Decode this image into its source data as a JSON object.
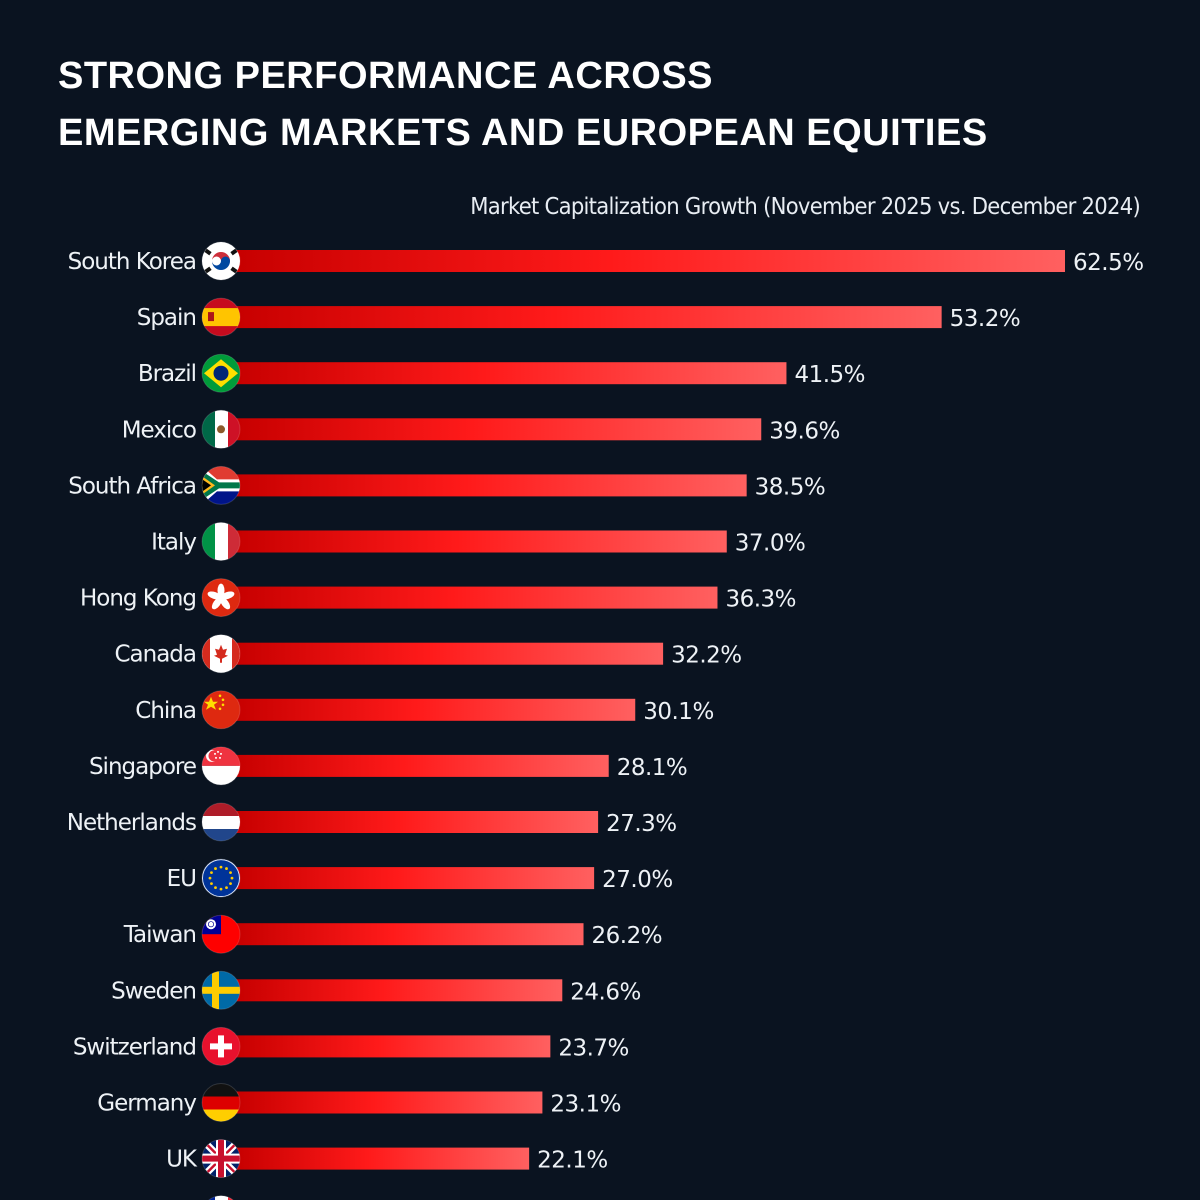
{
  "header": {
    "title_line1": "STRONG PERFORMANCE ACROSS",
    "title_line2": "EMERGING MARKETS AND EUROPEAN EQUITIES"
  },
  "chart_data": {
    "type": "bar",
    "orientation": "horizontal",
    "title": "STRONG PERFORMANCE ACROSS EMERGING MARKETS AND EUROPEAN EQUITIES",
    "subtitle": "Market Capitalization Growth (November 2025 vs. December 2024)",
    "unit": "%",
    "xlim": [
      0,
      62.5
    ],
    "grid": false,
    "bar_gradient": [
      "#c70000",
      "#ff1a1a",
      "#ff6060"
    ],
    "categories": [
      "South Korea",
      "Spain",
      "Brazil",
      "Mexico",
      "South Africa",
      "Italy",
      "Hong Kong",
      "Canada",
      "China",
      "Singapore",
      "Netherlands",
      "EU",
      "Taiwan",
      "Sweden",
      "Switzerland",
      "Germany",
      "UK"
    ],
    "values": [
      62.5,
      53.2,
      41.5,
      39.6,
      38.5,
      37.0,
      36.3,
      32.2,
      30.1,
      28.1,
      27.3,
      27.0,
      26.2,
      24.6,
      23.7,
      23.1,
      22.1
    ],
    "value_labels": [
      "62.5%",
      "53.2%",
      "41.5%",
      "39.6%",
      "38.5%",
      "37.0%",
      "36.3%",
      "32.2%",
      "30.1%",
      "28.1%",
      "27.3%",
      "27.0%",
      "26.2%",
      "24.6%",
      "23.7%",
      "23.1%",
      "22.1%"
    ],
    "flags": [
      "south-korea-flag-icon",
      "spain-flag-icon",
      "brazil-flag-icon",
      "mexico-flag-icon",
      "south-africa-flag-icon",
      "italy-flag-icon",
      "hong-kong-flag-icon",
      "canada-flag-icon",
      "china-flag-icon",
      "singapore-flag-icon",
      "netherlands-flag-icon",
      "eu-flag-icon",
      "taiwan-flag-icon",
      "sweden-flag-icon",
      "switzerland-flag-icon",
      "germany-flag-icon",
      "uk-flag-icon"
    ],
    "partial_next_flag": "france-flag-icon"
  }
}
